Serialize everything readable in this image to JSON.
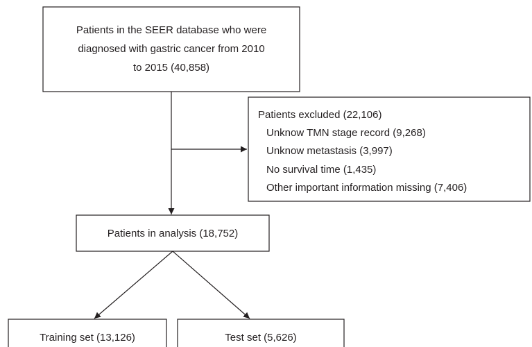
{
  "nodes": [
    {
      "lines": [
        "Patients in the SEER database who were",
        "diagnosed with gastric cancer from 2010",
        "to 2015 (40,858)"
      ]
    },
    {
      "lines": [
        "Patients excluded (22,106)",
        "Unknow TMN stage record (9,268)",
        "Unknow metastasis (3,997)",
        "No survival time (1,435)",
        "Other important information missing (7,406)"
      ]
    },
    {
      "lines": [
        "Patients in analysis (18,752)"
      ]
    },
    {
      "lines": [
        "Training set (13,126)"
      ]
    },
    {
      "lines": [
        "Test set (5,626)"
      ]
    }
  ]
}
